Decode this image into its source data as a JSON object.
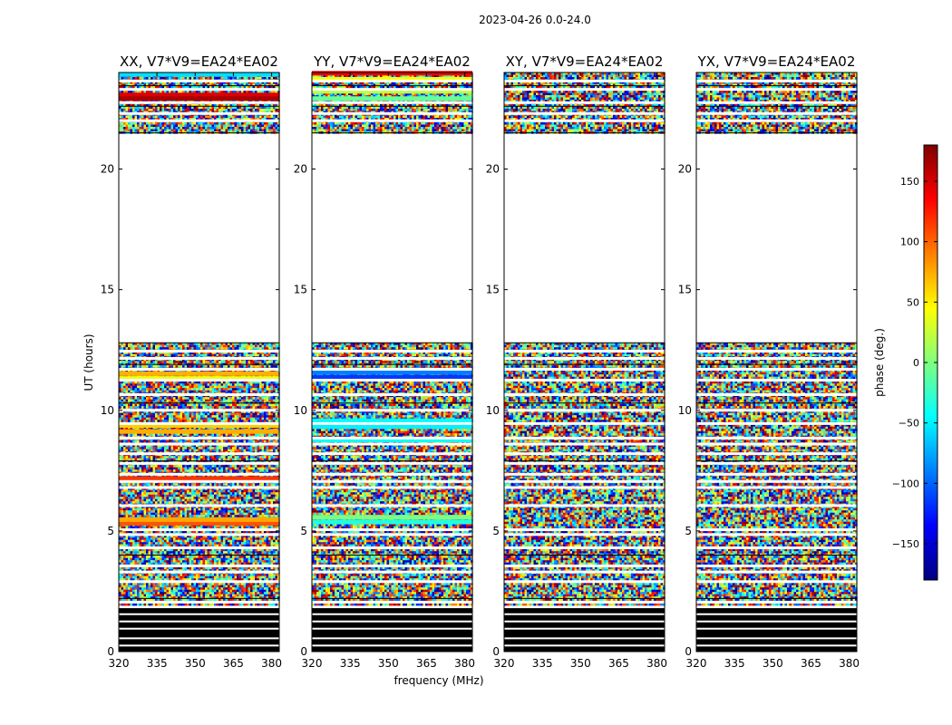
{
  "figure": {
    "suptitle": "2023-04-26 0.0-24.0",
    "xlabel": "frequency (MHz)",
    "ylabel": "UT (hours)"
  },
  "colorbar": {
    "label": "phase (deg.)",
    "range": [
      -180,
      180
    ],
    "ticks": [
      "150",
      "100",
      "50",
      "0",
      "−50",
      "−100",
      "−150"
    ],
    "colormap": "jet",
    "colors": [
      "#00007f",
      "#0000ff",
      "#007fff",
      "#00ffff",
      "#7fff7f",
      "#ffff00",
      "#ff7f00",
      "#ff0000",
      "#7f0000"
    ]
  },
  "chart_data": [
    {
      "type": "heatmap",
      "title": "XX, V7*V9=EA24*EA02",
      "xlim": [
        320,
        383
      ],
      "ylim": [
        0,
        24
      ],
      "xticks": [
        "320",
        "335",
        "350",
        "365",
        "380"
      ],
      "yticks": [
        "0",
        "5",
        "10",
        "15",
        "20"
      ],
      "value": "phase (deg.), mostly noise-like",
      "no_data_hours": [
        [
          12.8,
          21.5
        ]
      ],
      "zero_black_hours": [
        [
          0.0,
          1.8
        ]
      ]
    },
    {
      "type": "heatmap",
      "title": "YY, V7*V9=EA24*EA02",
      "xlim": [
        320,
        383
      ],
      "ylim": [
        0,
        24
      ],
      "xticks": [
        "320",
        "335",
        "350",
        "365",
        "380"
      ],
      "yticks": [
        "0",
        "5",
        "10",
        "15",
        "20"
      ],
      "value": "phase (deg.), mostly noise-like",
      "no_data_hours": [
        [
          12.8,
          21.5
        ]
      ],
      "zero_black_hours": [
        [
          0.0,
          1.8
        ]
      ]
    },
    {
      "type": "heatmap",
      "title": "XY, V7*V9=EA24*EA02",
      "xlim": [
        320,
        383
      ],
      "ylim": [
        0,
        24
      ],
      "xticks": [
        "320",
        "335",
        "350",
        "365",
        "380"
      ],
      "yticks": [
        "0",
        "5",
        "10",
        "15",
        "20"
      ],
      "value": "phase (deg.), noise",
      "no_data_hours": [
        [
          12.8,
          21.5
        ]
      ],
      "zero_black_hours": [
        [
          0.0,
          1.8
        ]
      ]
    },
    {
      "type": "heatmap",
      "title": "YX, V7*V9=EA24*EA02",
      "xlim": [
        320,
        383
      ],
      "ylim": [
        0,
        24
      ],
      "xticks": [
        "320",
        "335",
        "350",
        "365",
        "380"
      ],
      "yticks": [
        "0",
        "5",
        "10",
        "15",
        "20"
      ],
      "value": "phase (deg.), noise",
      "no_data_hours": [
        [
          12.8,
          21.5
        ]
      ],
      "zero_black_hours": [
        [
          0.0,
          1.8
        ]
      ]
    }
  ]
}
